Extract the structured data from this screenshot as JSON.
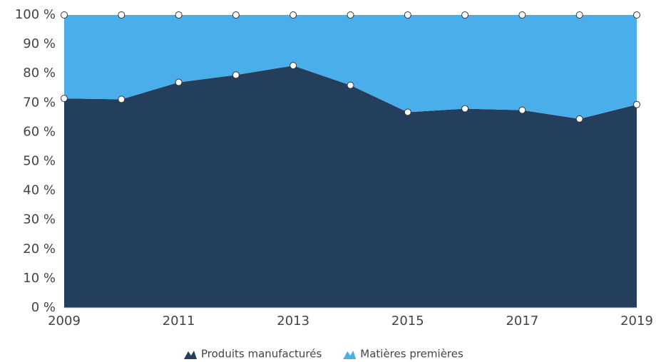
{
  "chart_data": {
    "type": "stacked_area",
    "x": [
      2009,
      2010,
      2011,
      2012,
      2013,
      2014,
      2015,
      2016,
      2017,
      2018,
      2019
    ],
    "series": [
      {
        "name": "Produits manufacturés",
        "color": "#243f5e",
        "values": [
          71.5,
          71.2,
          77,
          79.5,
          82.7,
          76,
          66.8,
          68,
          67.5,
          64.5,
          69.4
        ]
      },
      {
        "name": "Matières premières",
        "color": "#4aaeea",
        "values": [
          28.5,
          28.8,
          23,
          20.5,
          17.3,
          24,
          33.2,
          32,
          32.5,
          35.5,
          30.6
        ]
      }
    ],
    "xlim": [
      2009,
      2019
    ],
    "xticks": [
      2009,
      2011,
      2013,
      2015,
      2017,
      2019
    ],
    "ylim": [
      0,
      100
    ],
    "yticks": [
      {
        "value": 0,
        "label": "0 %"
      },
      {
        "value": 10,
        "label": "10 %"
      },
      {
        "value": 20,
        "label": "20 %"
      },
      {
        "value": 30,
        "label": "30 %"
      },
      {
        "value": 40,
        "label": "40 %"
      },
      {
        "value": 50,
        "label": "50 %"
      },
      {
        "value": 60,
        "label": "60 %"
      },
      {
        "value": 70,
        "label": "70 %"
      },
      {
        "value": 80,
        "label": "80 %"
      },
      {
        "value": 90,
        "label": "90 %"
      },
      {
        "value": 100,
        "label": "100 %"
      }
    ],
    "legend": "bottom"
  }
}
